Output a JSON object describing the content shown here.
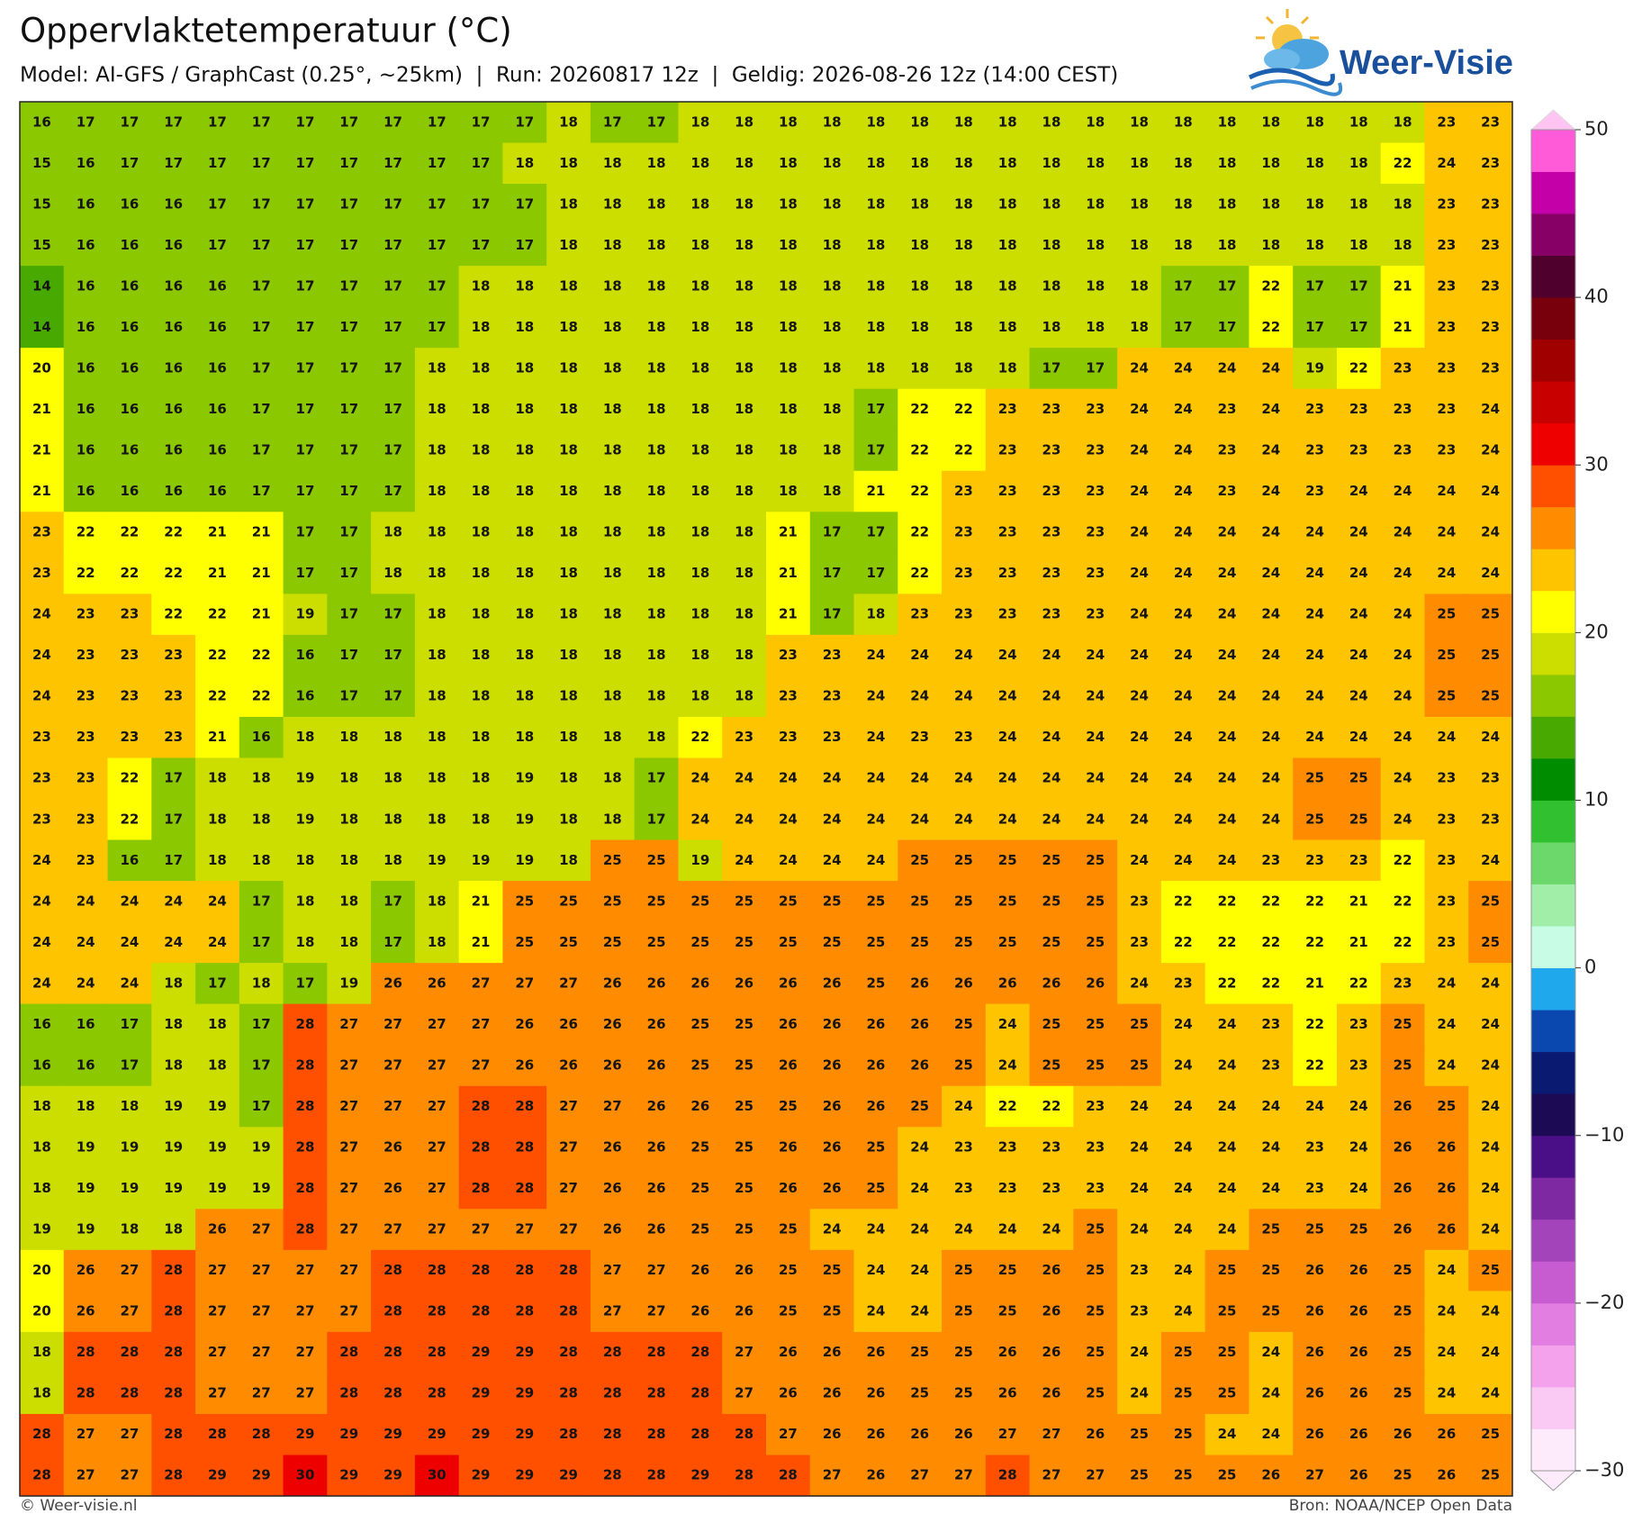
{
  "header": {
    "title": "Oppervlaktetemperatuur (°C)",
    "subtitle": "Model: AI-GFS / GraphCast (0.25°, ~25km)  |  Run: 20260817 12z  |  Geldig: 2026-08-26 12z (14:00 CEST)"
  },
  "logo": "Weer-Visie",
  "map": {
    "rows": [
      [
        16,
        17,
        17,
        17,
        17,
        17,
        17,
        17,
        17,
        17,
        17,
        17,
        18,
        17,
        17,
        18,
        18,
        18,
        18,
        18,
        18,
        18,
        18,
        18,
        18,
        18,
        18,
        18,
        18,
        18,
        18,
        18,
        23,
        23
      ],
      [
        15,
        16,
        17,
        17,
        17,
        17,
        17,
        17,
        17,
        17,
        17,
        18,
        18,
        18,
        18,
        18,
        18,
        18,
        18,
        18,
        18,
        18,
        18,
        18,
        18,
        18,
        18,
        18,
        18,
        18,
        18,
        22,
        24,
        23
      ],
      [
        15,
        16,
        16,
        16,
        17,
        17,
        17,
        17,
        17,
        17,
        17,
        17,
        18,
        18,
        18,
        18,
        18,
        18,
        18,
        18,
        18,
        18,
        18,
        18,
        18,
        18,
        18,
        18,
        18,
        18,
        18,
        18,
        23,
        23
      ],
      [
        15,
        16,
        16,
        16,
        17,
        17,
        17,
        17,
        17,
        17,
        17,
        17,
        18,
        18,
        18,
        18,
        18,
        18,
        18,
        18,
        18,
        18,
        18,
        18,
        18,
        18,
        18,
        18,
        18,
        18,
        18,
        18,
        23,
        23
      ],
      [
        14,
        16,
        16,
        16,
        16,
        17,
        17,
        17,
        17,
        17,
        18,
        18,
        18,
        18,
        18,
        18,
        18,
        18,
        18,
        18,
        18,
        18,
        18,
        18,
        18,
        18,
        17,
        17,
        22,
        17,
        17,
        21,
        23,
        23
      ],
      [
        14,
        16,
        16,
        16,
        16,
        17,
        17,
        17,
        17,
        17,
        18,
        18,
        18,
        18,
        18,
        18,
        18,
        18,
        18,
        18,
        18,
        18,
        18,
        18,
        18,
        18,
        17,
        17,
        22,
        17,
        17,
        21,
        23,
        23
      ],
      [
        20,
        16,
        16,
        16,
        16,
        17,
        17,
        17,
        17,
        18,
        18,
        18,
        18,
        18,
        18,
        18,
        18,
        18,
        18,
        18,
        18,
        18,
        18,
        17,
        17,
        24,
        24,
        24,
        24,
        19,
        22,
        23,
        23,
        23
      ],
      [
        21,
        16,
        16,
        16,
        16,
        17,
        17,
        17,
        17,
        18,
        18,
        18,
        18,
        18,
        18,
        18,
        18,
        18,
        18,
        17,
        22,
        22,
        23,
        23,
        23,
        24,
        24,
        23,
        24,
        23,
        23,
        23,
        23,
        24
      ],
      [
        21,
        16,
        16,
        16,
        16,
        17,
        17,
        17,
        17,
        18,
        18,
        18,
        18,
        18,
        18,
        18,
        18,
        18,
        18,
        17,
        22,
        22,
        23,
        23,
        23,
        24,
        24,
        23,
        24,
        23,
        23,
        23,
        23,
        24
      ],
      [
        21,
        16,
        16,
        16,
        16,
        17,
        17,
        17,
        17,
        18,
        18,
        18,
        18,
        18,
        18,
        18,
        18,
        18,
        18,
        21,
        22,
        23,
        23,
        23,
        23,
        24,
        24,
        23,
        24,
        23,
        24,
        24,
        24,
        24
      ],
      [
        23,
        22,
        22,
        22,
        21,
        21,
        17,
        17,
        18,
        18,
        18,
        18,
        18,
        18,
        18,
        18,
        18,
        21,
        17,
        17,
        22,
        23,
        23,
        23,
        23,
        24,
        24,
        24,
        24,
        24,
        24,
        24,
        24,
        24
      ],
      [
        23,
        22,
        22,
        22,
        21,
        21,
        17,
        17,
        18,
        18,
        18,
        18,
        18,
        18,
        18,
        18,
        18,
        21,
        17,
        17,
        22,
        23,
        23,
        23,
        23,
        24,
        24,
        24,
        24,
        24,
        24,
        24,
        24,
        24
      ],
      [
        24,
        23,
        23,
        22,
        22,
        21,
        19,
        17,
        17,
        18,
        18,
        18,
        18,
        18,
        18,
        18,
        18,
        21,
        17,
        18,
        23,
        23,
        23,
        23,
        23,
        24,
        24,
        24,
        24,
        24,
        24,
        24,
        25,
        25
      ],
      [
        24,
        23,
        23,
        23,
        22,
        22,
        16,
        17,
        17,
        18,
        18,
        18,
        18,
        18,
        18,
        18,
        18,
        23,
        23,
        24,
        24,
        24,
        24,
        24,
        24,
        24,
        24,
        24,
        24,
        24,
        24,
        24,
        25,
        25
      ],
      [
        24,
        23,
        23,
        23,
        22,
        22,
        16,
        17,
        17,
        18,
        18,
        18,
        18,
        18,
        18,
        18,
        18,
        23,
        23,
        24,
        24,
        24,
        24,
        24,
        24,
        24,
        24,
        24,
        24,
        24,
        24,
        24,
        25,
        25
      ],
      [
        23,
        23,
        23,
        23,
        21,
        16,
        18,
        18,
        18,
        18,
        18,
        18,
        18,
        18,
        18,
        22,
        23,
        23,
        23,
        24,
        23,
        23,
        24,
        24,
        24,
        24,
        24,
        24,
        24,
        24,
        24,
        24,
        24,
        24
      ],
      [
        23,
        23,
        22,
        17,
        18,
        18,
        19,
        18,
        18,
        18,
        18,
        19,
        18,
        18,
        17,
        24,
        24,
        24,
        24,
        24,
        24,
        24,
        24,
        24,
        24,
        24,
        24,
        24,
        24,
        25,
        25,
        24,
        23,
        23
      ],
      [
        23,
        23,
        22,
        17,
        18,
        18,
        19,
        18,
        18,
        18,
        18,
        19,
        18,
        18,
        17,
        24,
        24,
        24,
        24,
        24,
        24,
        24,
        24,
        24,
        24,
        24,
        24,
        24,
        24,
        25,
        25,
        24,
        23,
        23
      ],
      [
        24,
        23,
        16,
        17,
        18,
        18,
        18,
        18,
        18,
        19,
        19,
        19,
        18,
        25,
        25,
        19,
        24,
        24,
        24,
        24,
        25,
        25,
        25,
        25,
        25,
        24,
        24,
        24,
        23,
        23,
        23,
        22,
        23,
        24
      ],
      [
        24,
        24,
        24,
        24,
        24,
        17,
        18,
        18,
        17,
        18,
        21,
        25,
        25,
        25,
        25,
        25,
        25,
        25,
        25,
        25,
        25,
        25,
        25,
        25,
        25,
        23,
        22,
        22,
        22,
        22,
        21,
        22,
        23,
        25
      ],
      [
        24,
        24,
        24,
        24,
        24,
        17,
        18,
        18,
        17,
        18,
        21,
        25,
        25,
        25,
        25,
        25,
        25,
        25,
        25,
        25,
        25,
        25,
        25,
        25,
        25,
        23,
        22,
        22,
        22,
        22,
        21,
        22,
        23,
        25
      ],
      [
        24,
        24,
        24,
        18,
        17,
        18,
        17,
        19,
        26,
        26,
        27,
        27,
        27,
        26,
        26,
        26,
        26,
        26,
        26,
        25,
        26,
        26,
        26,
        26,
        26,
        24,
        23,
        22,
        22,
        21,
        22,
        23,
        24,
        24
      ],
      [
        16,
        16,
        17,
        18,
        18,
        17,
        28,
        27,
        27,
        27,
        27,
        26,
        26,
        26,
        26,
        25,
        25,
        26,
        26,
        26,
        26,
        25,
        24,
        25,
        25,
        25,
        24,
        24,
        23,
        22,
        23,
        25,
        24,
        24
      ],
      [
        16,
        16,
        17,
        18,
        18,
        17,
        28,
        27,
        27,
        27,
        27,
        26,
        26,
        26,
        26,
        25,
        25,
        26,
        26,
        26,
        26,
        25,
        24,
        25,
        25,
        25,
        24,
        24,
        23,
        22,
        23,
        25,
        24,
        24
      ],
      [
        18,
        18,
        18,
        19,
        19,
        17,
        28,
        27,
        27,
        27,
        28,
        28,
        27,
        27,
        26,
        26,
        25,
        25,
        26,
        26,
        25,
        24,
        22,
        22,
        23,
        24,
        24,
        24,
        24,
        24,
        24,
        26,
        25,
        24
      ],
      [
        18,
        19,
        19,
        19,
        19,
        19,
        28,
        27,
        26,
        27,
        28,
        28,
        27,
        26,
        26,
        25,
        25,
        26,
        26,
        25,
        24,
        23,
        23,
        23,
        23,
        24,
        24,
        24,
        24,
        23,
        24,
        26,
        26,
        24
      ],
      [
        18,
        19,
        19,
        19,
        19,
        19,
        28,
        27,
        26,
        27,
        28,
        28,
        27,
        26,
        26,
        25,
        25,
        26,
        26,
        25,
        24,
        23,
        23,
        23,
        23,
        24,
        24,
        24,
        24,
        23,
        24,
        26,
        26,
        24
      ],
      [
        19,
        19,
        18,
        18,
        26,
        27,
        28,
        27,
        27,
        27,
        27,
        27,
        27,
        26,
        26,
        25,
        25,
        25,
        24,
        24,
        24,
        24,
        24,
        24,
        25,
        24,
        24,
        24,
        25,
        25,
        25,
        26,
        26,
        24
      ],
      [
        20,
        26,
        27,
        28,
        27,
        27,
        27,
        27,
        28,
        28,
        28,
        28,
        28,
        27,
        27,
        26,
        26,
        25,
        25,
        24,
        24,
        25,
        25,
        26,
        25,
        23,
        24,
        25,
        25,
        26,
        26,
        25,
        24,
        25
      ],
      [
        20,
        26,
        27,
        28,
        27,
        27,
        27,
        27,
        28,
        28,
        28,
        28,
        28,
        27,
        27,
        26,
        26,
        25,
        25,
        24,
        24,
        25,
        25,
        26,
        25,
        23,
        24,
        25,
        25,
        26,
        26,
        25,
        24,
        24
      ],
      [
        18,
        28,
        28,
        28,
        27,
        27,
        27,
        28,
        28,
        28,
        29,
        29,
        28,
        28,
        28,
        28,
        27,
        26,
        26,
        26,
        25,
        25,
        26,
        26,
        25,
        24,
        25,
        25,
        24,
        26,
        26,
        25,
        24,
        24
      ],
      [
        18,
        28,
        28,
        28,
        27,
        27,
        27,
        28,
        28,
        28,
        29,
        29,
        28,
        28,
        28,
        28,
        27,
        26,
        26,
        26,
        25,
        25,
        26,
        26,
        25,
        24,
        25,
        25,
        24,
        26,
        26,
        25,
        24,
        24
      ],
      [
        28,
        27,
        27,
        28,
        28,
        28,
        29,
        29,
        29,
        29,
        29,
        29,
        28,
        28,
        28,
        28,
        28,
        27,
        26,
        26,
        26,
        26,
        27,
        27,
        26,
        25,
        25,
        24,
        24,
        26,
        26,
        26,
        26,
        25
      ],
      [
        28,
        27,
        27,
        28,
        29,
        29,
        30,
        29,
        29,
        30,
        29,
        29,
        29,
        28,
        28,
        29,
        28,
        28,
        27,
        26,
        27,
        27,
        28,
        27,
        27,
        25,
        25,
        25,
        26,
        27,
        26,
        25,
        26,
        25
      ]
    ]
  },
  "colorbar": {
    "lim": [
      -30,
      50
    ],
    "ticks": [
      50,
      40,
      30,
      20,
      10,
      0,
      {
        "value": -10,
        "label": "−10"
      },
      {
        "value": -20,
        "label": "−20"
      },
      {
        "value": -30,
        "label": "−30"
      }
    ],
    "colors": [
      "#fdeafb",
      "#fbcaf4",
      "#f4a2ec",
      "#e27ee2",
      "#c65ccf",
      "#a444bb",
      "#7e28a2",
      "#4a0f86",
      "#1c0a55",
      "#0a1a70",
      "#0a48b0",
      "#20a8ec",
      "#c8fce4",
      "#a0eea8",
      "#6cd86c",
      "#30c030",
      "#008c00",
      "#48aa00",
      "#8cc800",
      "#ccdd00",
      "#ffff00",
      "#ffc400",
      "#ff8c00",
      "#ff5000",
      "#ee0000",
      "#c80000",
      "#a00000",
      "#78000c",
      "#50002c",
      "#860066",
      "#c400a8",
      "#ff5ad8"
    ]
  },
  "footer": {
    "left": "© Weer-visie.nl",
    "right": "Bron: NOAA/NCEP Open Data"
  }
}
